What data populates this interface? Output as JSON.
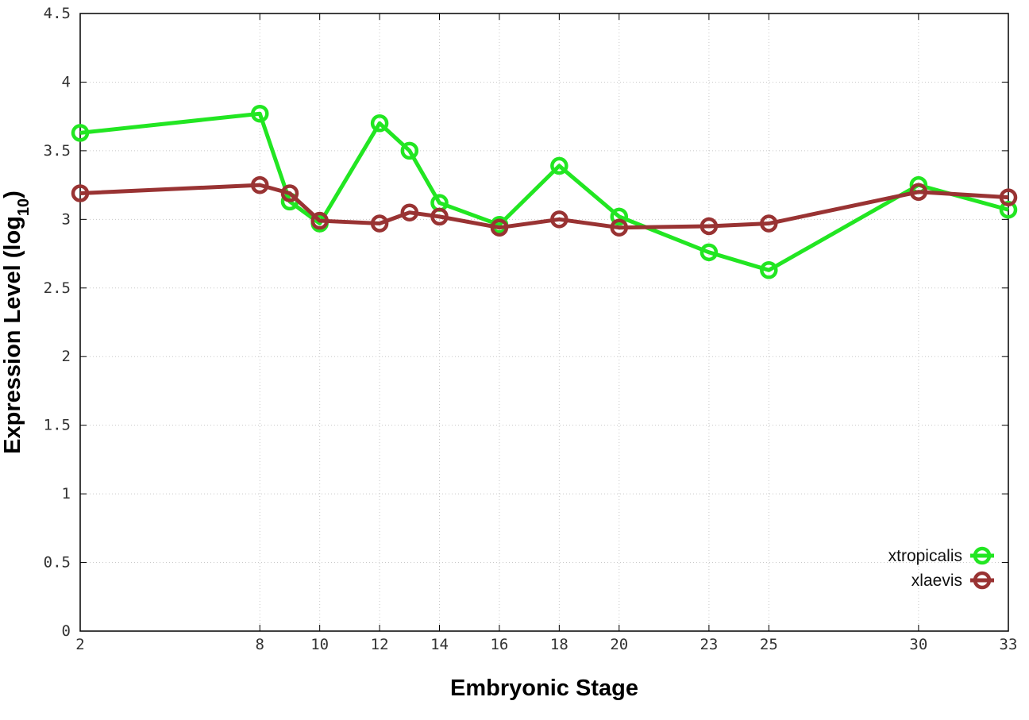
{
  "chart_data": {
    "type": "line",
    "title": "",
    "xlabel": "Embryonic Stage",
    "ylabel_main": "Expression Level (log",
    "ylabel_sub": "10",
    "ylabel_close": ")",
    "x": [
      2,
      8,
      9,
      10,
      12,
      13,
      14,
      16,
      18,
      20,
      23,
      25,
      30,
      33
    ],
    "x_ticks": [
      2,
      8,
      10,
      12,
      14,
      16,
      18,
      20,
      23,
      25,
      30,
      33
    ],
    "y_ticks": [
      "0",
      "0.5",
      "1",
      "1.5",
      "2",
      "2.5",
      "3",
      "3.5",
      "4",
      "4.5"
    ],
    "xlim": [
      2,
      33
    ],
    "ylim": [
      0,
      4.5
    ],
    "grid": true,
    "legend_position": "bottom-right",
    "series": [
      {
        "name": "xtropicalis",
        "color": "#22e622",
        "values": [
          3.63,
          3.77,
          3.13,
          2.97,
          3.7,
          3.5,
          3.12,
          2.96,
          3.39,
          3.02,
          2.76,
          2.63,
          3.25,
          3.07
        ]
      },
      {
        "name": "xlaevis",
        "color": "#993333",
        "values": [
          3.19,
          3.25,
          3.19,
          2.99,
          2.97,
          3.05,
          3.02,
          2.94,
          3.0,
          2.94,
          2.95,
          2.97,
          3.2,
          3.16
        ]
      }
    ]
  }
}
